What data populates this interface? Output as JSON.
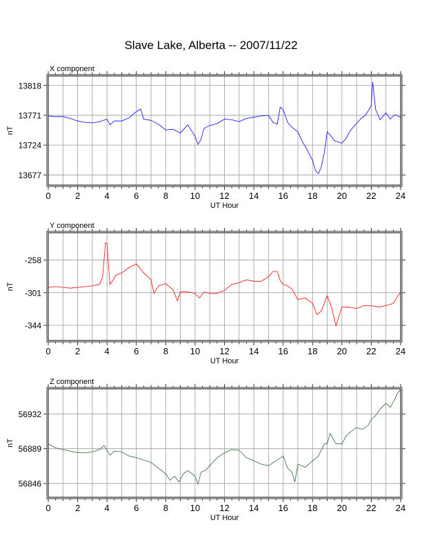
{
  "title": "Slave Lake, Alberta -- 2007/11/22",
  "chart_data": [
    {
      "type": "line",
      "title": "X component",
      "xlabel": "UT Hour",
      "ylabel": "nT",
      "xlim": [
        0,
        24
      ],
      "ylim": [
        13661,
        13833
      ],
      "xticks": [
        "0",
        "2",
        "4",
        "6",
        "8",
        "10",
        "12",
        "14",
        "16",
        "18",
        "20",
        "22",
        "24"
      ],
      "yticks": [
        13677,
        13724,
        13771,
        13818
      ],
      "grid": true,
      "series": [
        {
          "color": "#0000ff",
          "x": [
            0,
            0.5,
            1,
            1.5,
            2,
            2.5,
            3,
            3.5,
            4,
            4.2,
            4.5,
            5,
            5.5,
            6,
            6.3,
            6.5,
            7,
            7.5,
            8,
            8.5,
            9,
            9.5,
            10,
            10.2,
            10.4,
            10.6,
            11,
            11.5,
            12,
            12.5,
            13,
            13.5,
            14,
            14.5,
            15,
            15.3,
            15.6,
            15.8,
            16,
            16.3,
            16.6,
            17,
            17.3,
            17.6,
            18,
            18.2,
            18.4,
            18.6,
            18.8,
            19,
            19.2,
            19.5,
            20,
            20.3,
            20.6,
            21,
            21.3,
            21.6,
            22,
            22.1,
            22.3,
            22.6,
            23,
            23.3,
            23.6,
            24
          ],
          "y": [
            13770,
            13769,
            13769,
            13766,
            13762,
            13760,
            13759,
            13761,
            13765,
            13756,
            13762,
            13762,
            13767,
            13777,
            13781,
            13765,
            13763,
            13757,
            13748,
            13749,
            13743,
            13756,
            13738,
            13725,
            13733,
            13750,
            13755,
            13758,
            13765,
            13764,
            13761,
            13766,
            13768,
            13770,
            13771,
            13760,
            13757,
            13784,
            13780,
            13760,
            13752,
            13745,
            13730,
            13718,
            13700,
            13684,
            13679,
            13690,
            13712,
            13745,
            13740,
            13731,
            13727,
            13735,
            13748,
            13758,
            13766,
            13771,
            13786,
            13823,
            13780,
            13764,
            13775,
            13765,
            13772,
            13768
          ]
        }
      ]
    },
    {
      "type": "line",
      "title": "Y component",
      "xlabel": "UT Hour",
      "ylabel": "nT",
      "xlim": [
        0,
        24
      ],
      "ylim": [
        -364,
        -222
      ],
      "xticks": [
        "0",
        "2",
        "4",
        "6",
        "8",
        "10",
        "12",
        "14",
        "16",
        "18",
        "20",
        "22",
        "24"
      ],
      "yticks": [
        -344,
        -301,
        -258
      ],
      "grid": true,
      "series": [
        {
          "color": "#ff0000",
          "x": [
            0,
            0.5,
            1,
            1.5,
            2,
            2.5,
            3,
            3.5,
            3.7,
            3.9,
            4.0,
            4.2,
            4.4,
            4.6,
            5,
            5.5,
            6,
            6.2,
            6.5,
            7,
            7.2,
            7.5,
            8,
            8.5,
            8.8,
            9,
            9.5,
            10,
            10.3,
            10.6,
            11,
            11.5,
            12,
            12.5,
            13,
            13.5,
            14,
            14.5,
            15,
            15.3,
            15.6,
            15.8,
            16,
            16.3,
            16.6,
            17,
            17.5,
            18,
            18.3,
            18.6,
            19,
            19.3,
            19.6,
            19.7,
            20,
            20.5,
            21,
            21.5,
            22,
            22.5,
            23,
            23.5,
            24
          ],
          "y": [
            -294,
            -293,
            -294,
            -295,
            -294,
            -293,
            -292,
            -290,
            -280,
            -235,
            -237,
            -290,
            -285,
            -278,
            -275,
            -268,
            -263,
            -268,
            -275,
            -284,
            -302,
            -292,
            -289,
            -297,
            -312,
            -300,
            -300,
            -302,
            -308,
            -300,
            -302,
            -302,
            -298,
            -290,
            -288,
            -284,
            -286,
            -286,
            -280,
            -273,
            -273,
            -285,
            -290,
            -292,
            -296,
            -310,
            -308,
            -315,
            -330,
            -325,
            -305,
            -320,
            -345,
            -338,
            -320,
            -320,
            -322,
            -318,
            -318,
            -320,
            -318,
            -315,
            -300
          ]
        }
      ]
    },
    {
      "type": "line",
      "title": "Z component",
      "xlabel": "UT Hour",
      "ylabel": "nT",
      "xlim": [
        0,
        24
      ],
      "ylim": [
        56829,
        56963
      ],
      "xticks": [
        "0",
        "2",
        "4",
        "6",
        "8",
        "10",
        "12",
        "14",
        "16",
        "18",
        "20",
        "22",
        "24"
      ],
      "yticks": [
        56846,
        56889,
        56932
      ],
      "grid": true,
      "series": [
        {
          "color": "#2e6b3a",
          "x": [
            0,
            0.5,
            1,
            1.5,
            2,
            2.5,
            3,
            3.5,
            3.8,
            4.2,
            4.5,
            5,
            5.5,
            6,
            6.5,
            7,
            7.5,
            8,
            8.3,
            8.6,
            8.9,
            9.2,
            9.5,
            10,
            10.2,
            10.4,
            10.7,
            11,
            11.5,
            12,
            12.5,
            13,
            13.5,
            14,
            14.5,
            15,
            15.5,
            16,
            16.3,
            16.6,
            16.8,
            17,
            17.5,
            18,
            18.4,
            18.8,
            19,
            19.2,
            19.6,
            20,
            20.3,
            20.6,
            21,
            21.4,
            21.8,
            22,
            22.3,
            22.6,
            23,
            23.3,
            23.6,
            23.8,
            24
          ],
          "y": [
            56895,
            56890,
            56888,
            56886,
            56884,
            56884,
            56885,
            56888,
            56893,
            56881,
            56886,
            56885,
            56880,
            56878,
            56875,
            56872,
            56865,
            56858,
            56850,
            56855,
            56848,
            56858,
            56862,
            56855,
            56845,
            56860,
            56862,
            56868,
            56878,
            56884,
            56888,
            56887,
            56878,
            56874,
            56870,
            56868,
            56874,
            56880,
            56865,
            56860,
            56848,
            56870,
            56866,
            56874,
            56880,
            56895,
            56895,
            56908,
            56895,
            56895,
            56905,
            56910,
            56915,
            56913,
            56918,
            56925,
            56930,
            56938,
            56945,
            56940,
            56950,
            56958,
            56962
          ]
        }
      ]
    }
  ]
}
